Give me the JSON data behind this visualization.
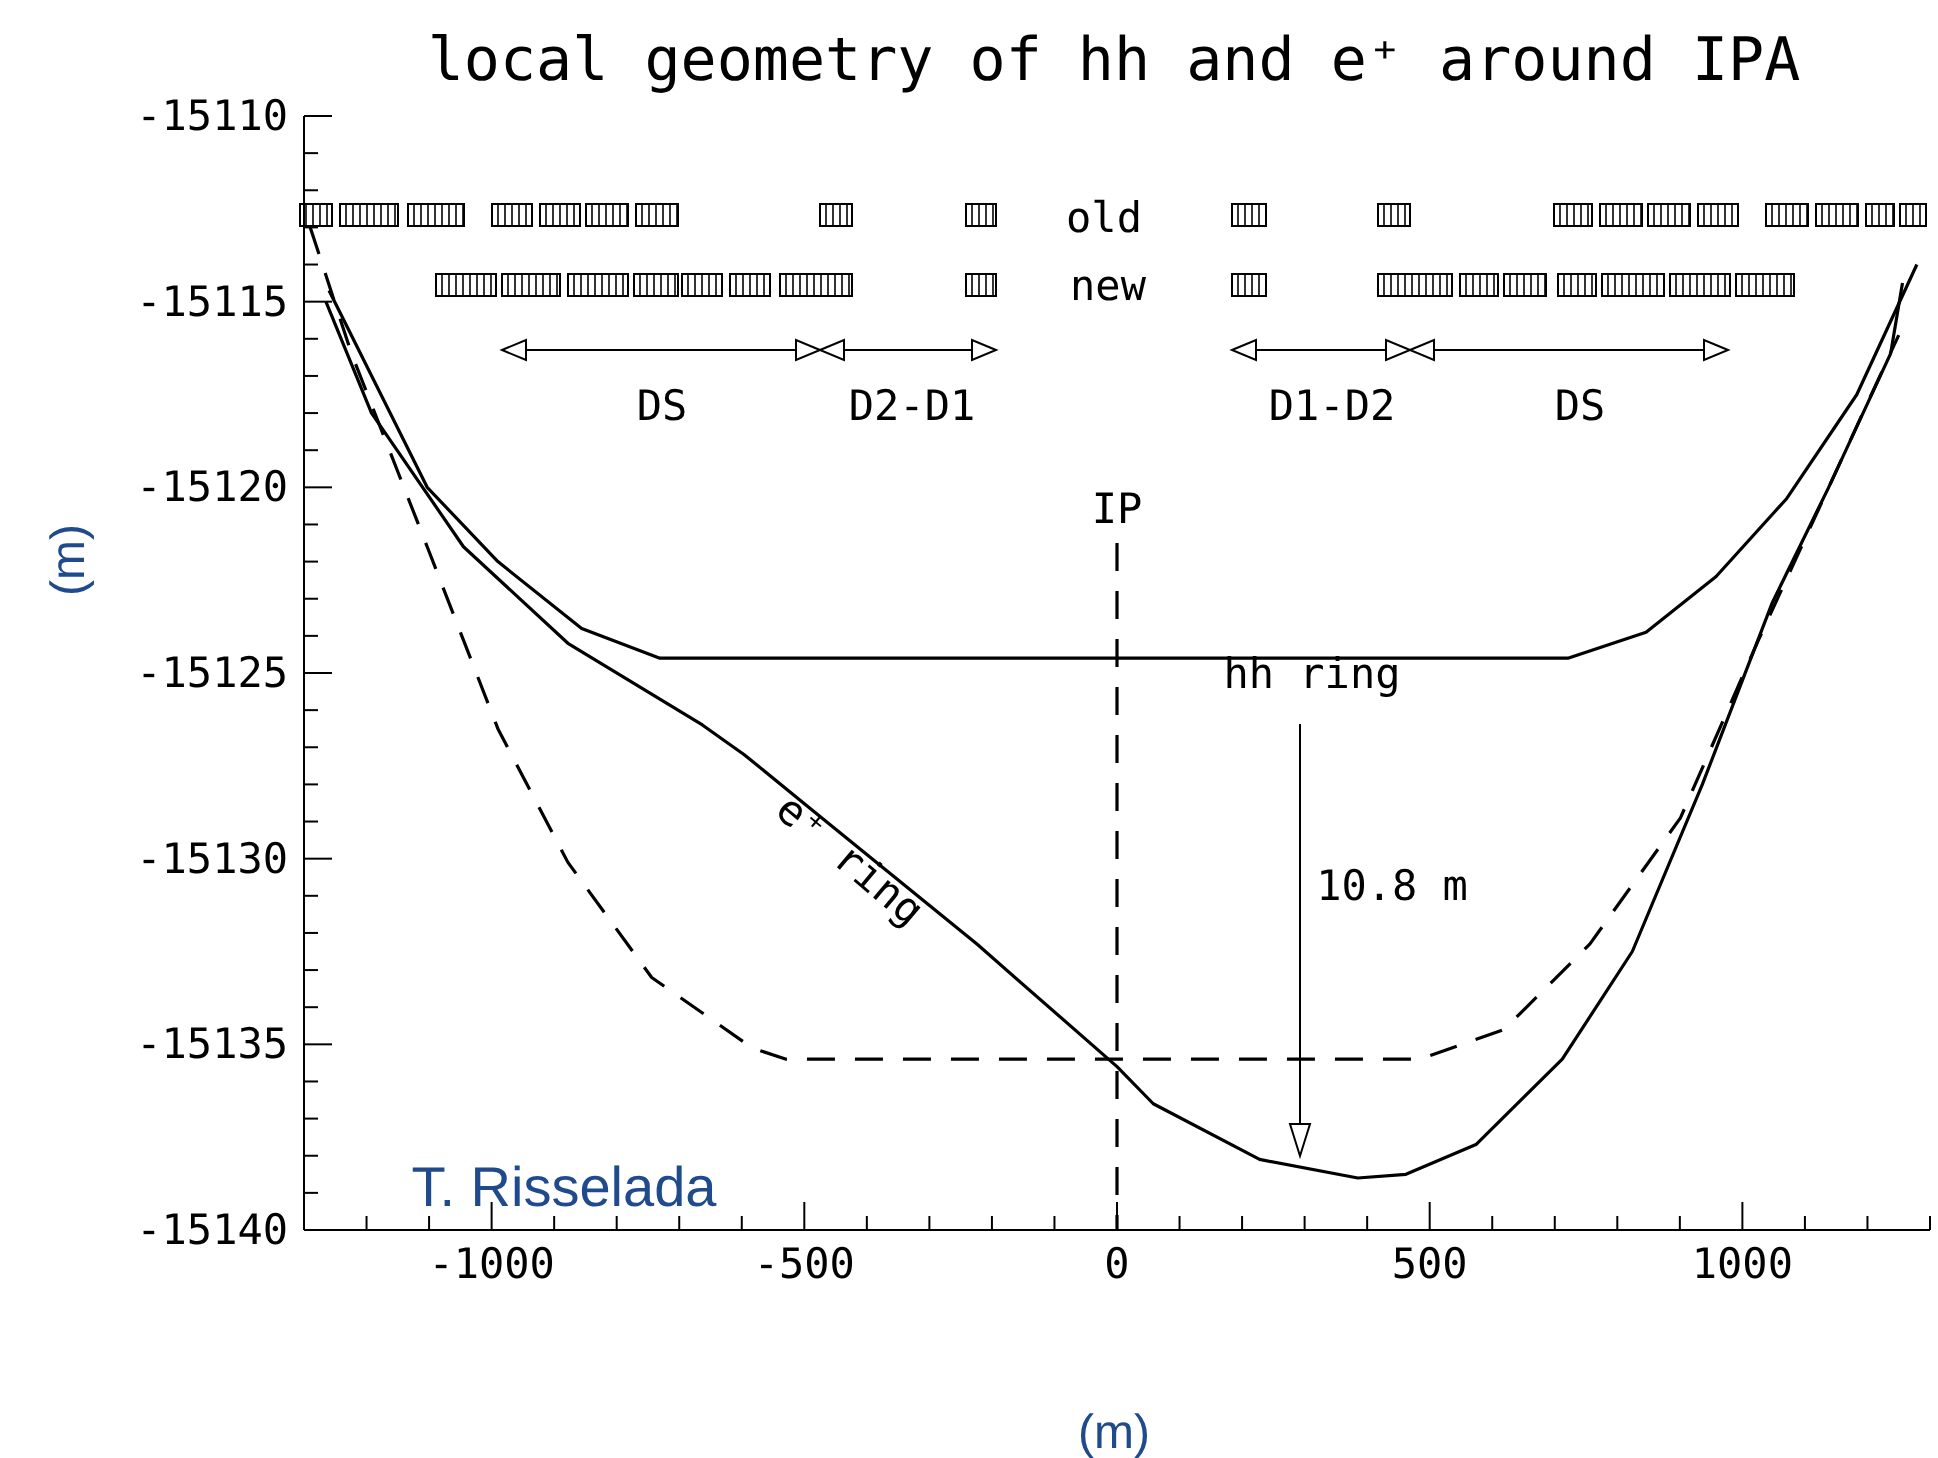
{
  "chart_data": {
    "type": "line",
    "title": "local geometry of hh and e⁺ around IPA",
    "xlabel": "(m)",
    "ylabel": "(m)",
    "xlim": [
      -1300,
      1300
    ],
    "xticks": [
      {
        "value": -1300,
        "label": null
      },
      {
        "value": -1200,
        "label": null
      },
      {
        "value": -1100,
        "label": null
      },
      -1000,
      {
        "value": -900,
        "label": null
      },
      {
        "value": -800,
        "label": null
      },
      {
        "value": -700,
        "label": null
      },
      {
        "value": -600,
        "label": null
      },
      -500,
      {
        "value": -400,
        "label": null
      },
      {
        "value": -300,
        "label": null
      },
      {
        "value": -200,
        "label": null
      },
      {
        "value": -100,
        "label": null
      },
      0,
      {
        "value": 100,
        "label": null
      },
      {
        "value": 200,
        "label": null
      },
      {
        "value": 300,
        "label": null
      },
      {
        "value": 400,
        "label": null
      },
      500,
      {
        "value": 600,
        "label": null
      },
      {
        "value": 700,
        "label": null
      },
      {
        "value": 800,
        "label": null
      },
      {
        "value": 900,
        "label": null
      },
      1000,
      {
        "value": 1100,
        "label": null
      },
      {
        "value": 1200,
        "label": null
      },
      {
        "value": 1300,
        "label": null
      }
    ],
    "ylim": [
      -15140,
      -15110
    ],
    "yticks": [
      -15140,
      {
        "value": -15139,
        "label": null
      },
      {
        "value": -15138,
        "label": null
      },
      {
        "value": -15137,
        "label": null
      },
      {
        "value": -15136,
        "label": null
      },
      -15135,
      {
        "value": -15134,
        "label": null
      },
      {
        "value": -15133,
        "label": null
      },
      {
        "value": -15132,
        "label": null
      },
      {
        "value": -15131,
        "label": null
      },
      -15130,
      {
        "value": -15129,
        "label": null
      },
      {
        "value": -15128,
        "label": null
      },
      {
        "value": -15127,
        "label": null
      },
      {
        "value": -15126,
        "label": null
      },
      -15125,
      {
        "value": -15124,
        "label": null
      },
      {
        "value": -15123,
        "label": null
      },
      {
        "value": -15122,
        "label": null
      },
      {
        "value": -15121,
        "label": null
      },
      -15120,
      {
        "value": -15119,
        "label": null
      },
      {
        "value": -15118,
        "label": null
      },
      {
        "value": -15117,
        "label": null
      },
      {
        "value": -15116,
        "label": null
      },
      -15115,
      {
        "value": -15114,
        "label": null
      },
      {
        "value": -15113,
        "label": null
      },
      {
        "value": -15112,
        "label": null
      },
      {
        "value": -15111,
        "label": null
      },
      -15110
    ],
    "marker": "none",
    "series": [
      {
        "color": "#000000",
        "line_style": "solid",
        "x": [
          -1260,
          -1103,
          -990,
          -856,
          -731,
          721,
          846,
          958,
          1071,
          1183,
          1279
        ],
        "values": [
          -15114.7,
          -15120.0,
          -15122.0,
          -15123.8,
          -15124.6,
          -15124.6,
          -15123.9,
          -15122.4,
          -15120.3,
          -15117.5,
          -15114.0
        ]
      },
      {
        "color": "#000000",
        "line_style": "solid",
        "x": [
          -1265,
          -1192,
          -1045,
          -878,
          -663,
          -596,
          -494,
          -224,
          0,
          58,
          228,
          385,
          462,
          574,
          712,
          824,
          936,
          1048,
          1138,
          1237,
          1256
        ],
        "values": [
          -15115.0,
          -15118.0,
          -15121.6,
          -15124.2,
          -15126.4,
          -15127.2,
          -15128.6,
          -15132.3,
          -15135.6,
          -15136.6,
          -15138.1,
          -15138.6,
          -15138.5,
          -15137.7,
          -15135.4,
          -15132.5,
          -15128.0,
          -15123.1,
          -15120.0,
          -15116.4,
          -15114.5
        ]
      },
      {
        "color": "#000000",
        "line_style": "dashed",
        "x": [
          -1290,
          -1224,
          -1103,
          -990,
          -878,
          -744,
          -583,
          -529,
          484,
          619,
          756,
          901,
          1026,
          1138,
          1250
        ],
        "values": [
          -15113.0,
          -15116.4,
          -15121.6,
          -15126.5,
          -15130.1,
          -15133.2,
          -15135.1,
          -15135.4,
          -15135.4,
          -15134.6,
          -15132.3,
          -15128.9,
          -15124.1,
          -15120.0,
          -15115.9
        ]
      },
      {
        "name": "IP",
        "color": "#000000",
        "line_style": "dashed",
        "x": [
          0,
          0
        ],
        "values": [
          -15121.5,
          -15140
        ]
      }
    ],
    "annotations": [
      "hh ring",
      "e⁺ ring",
      "10.8 m",
      "DS",
      "D2-D1",
      "D1-D2",
      "DS",
      "old",
      "new",
      "T. Risselada"
    ]
  }
}
